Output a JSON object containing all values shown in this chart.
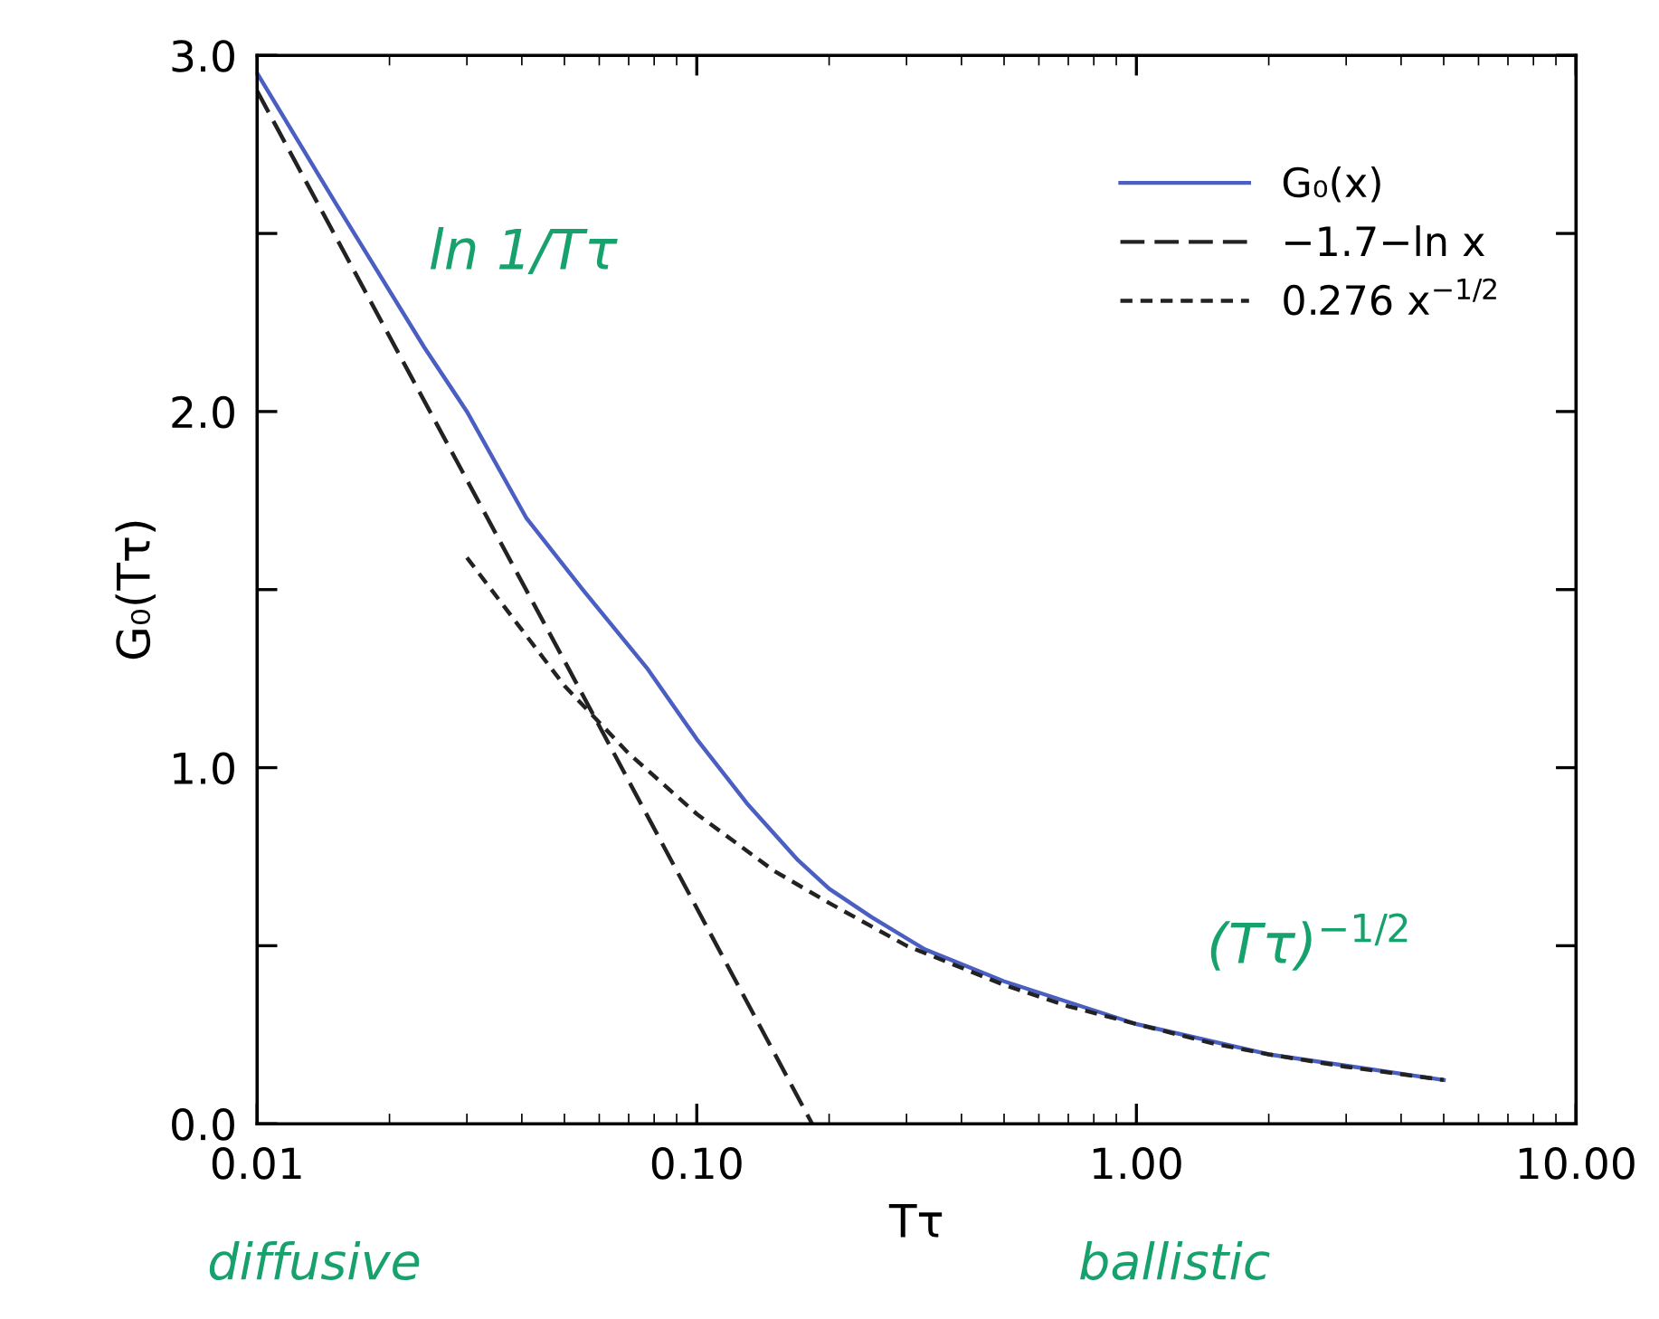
{
  "chart_data": {
    "type": "line",
    "xlabel": "Tτ",
    "ylabel": "G₀(Tτ)",
    "log": "x",
    "xlim": [
      0.01,
      10
    ],
    "ylim": [
      0,
      3
    ],
    "xticks": [
      {
        "value": 0.01,
        "label": "0.01"
      },
      {
        "value": 0.1,
        "label": "0.10"
      },
      {
        "value": 1,
        "label": "1.00"
      },
      {
        "value": 10,
        "label": "10.00"
      }
    ],
    "yticks": [
      {
        "value": 0,
        "label": "0.0"
      },
      {
        "value": 0.5,
        "label": null
      },
      {
        "value": 1,
        "label": "1.0"
      },
      {
        "value": 1.5,
        "label": null
      },
      {
        "value": 2,
        "label": "2.0"
      },
      {
        "value": 2.5,
        "label": null
      },
      {
        "value": 3,
        "label": "3.0"
      }
    ],
    "legend": "top right",
    "grid": false,
    "marker": "none",
    "series": [
      {
        "name": "G₀(x)",
        "color": "#4a5fc1",
        "line_style": "solid",
        "x": [
          0.01,
          0.015,
          0.024,
          0.03,
          0.041,
          0.055,
          0.077,
          0.1,
          0.13,
          0.17,
          0.2,
          0.25,
          0.33,
          0.5,
          1,
          2,
          5
        ],
        "values": [
          2.95,
          2.59,
          2.18,
          2.0,
          1.7,
          1.5,
          1.28,
          1.08,
          0.9,
          0.74,
          0.66,
          0.58,
          0.49,
          0.4,
          0.28,
          0.195,
          0.123
        ]
      },
      {
        "name": "−1.7−ln x",
        "color": "#222222",
        "line_style": "dashed",
        "x": [
          0.01,
          0.05,
          0.183
        ],
        "values": [
          2.9,
          1.3,
          0.0
        ]
      },
      {
        "name": "0.276 x$^{−1/2}$",
        "color": "#222222",
        "line_style": "dashed",
        "x": [
          0.03,
          0.05,
          0.07,
          0.1,
          0.15,
          0.2,
          0.3,
          0.5,
          0.7,
          1,
          1.5,
          2,
          3,
          5
        ],
        "values": [
          1.59,
          1.23,
          1.04,
          0.87,
          0.71,
          0.62,
          0.5,
          0.39,
          0.33,
          0.28,
          0.225,
          0.195,
          0.16,
          0.123
        ]
      }
    ],
    "annotations": [
      "ln 1/Tτ",
      "(Tτ)$^{−1/2}$",
      "diffusive",
      "ballistic"
    ]
  }
}
